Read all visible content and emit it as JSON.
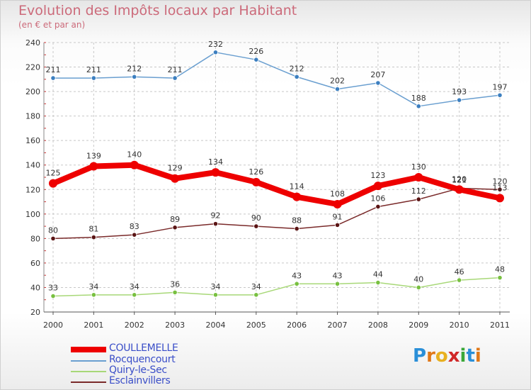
{
  "title": "Evolution des Impôts locaux par Habitant",
  "subtitle": "(en € et par an)",
  "brand": "Proxiti",
  "colors": {
    "title": "#cc6a7a",
    "legend_text": "#3a4ec8",
    "grid": "#c8c8c8",
    "axis_text": "#333333",
    "tick_red": "#cc3333"
  },
  "chart_data": {
    "type": "line",
    "title": "Evolution des Impôts locaux par Habitant",
    "subtitle": "(en € et par an)",
    "xlabel": "",
    "ylabel": "",
    "x": [
      "2000",
      "2001",
      "2002",
      "2003",
      "2004",
      "2005",
      "2006",
      "2007",
      "2008",
      "2009",
      "2010",
      "2011"
    ],
    "ylim": [
      20,
      240
    ],
    "yticks": [
      20,
      40,
      60,
      80,
      100,
      120,
      140,
      160,
      180,
      200,
      220,
      240
    ],
    "grid": true,
    "legend_position": "bottom-left",
    "series": [
      {
        "name": "COULLEMELLE",
        "color": "#ee0000",
        "marker_color": "#ee0000",
        "values": [
          125,
          139,
          140,
          129,
          134,
          126,
          114,
          108,
          123,
          130,
          120,
          113
        ],
        "labels": [
          "125",
          "139",
          "140",
          "129",
          "134",
          "126",
          "114",
          "108",
          "123",
          "130",
          "120",
          "113"
        ],
        "thick": true
      },
      {
        "name": "Rocquencourt",
        "color": "#6a9fd0",
        "marker_color": "#3c7fc0",
        "values": [
          211,
          211,
          212,
          211,
          232,
          226,
          212,
          202,
          207,
          188,
          193,
          197
        ],
        "labels": [
          "211",
          "211",
          "212",
          "211",
          "232",
          "226",
          "212",
          "202",
          "207",
          "188",
          "193",
          "197"
        ],
        "thick": false
      },
      {
        "name": "Quiry-le-Sec",
        "color": "#a8d878",
        "marker_color": "#78c040",
        "values": [
          33,
          34,
          34,
          36,
          34,
          34,
          43,
          43,
          44,
          40,
          46,
          48
        ],
        "labels": [
          "33",
          "34",
          "34",
          "36",
          "34",
          "34",
          "43",
          "43",
          "44",
          "40",
          "46",
          "48"
        ],
        "thick": false
      },
      {
        "name": "Esclainvillers",
        "color": "#7a2a2a",
        "marker_color": "#5a1414",
        "values": [
          80,
          81,
          83,
          89,
          92,
          90,
          88,
          91,
          106,
          112,
          121,
          120
        ],
        "labels": [
          "80",
          "81",
          "83",
          "89",
          "92",
          "90",
          "88",
          "91",
          "106",
          "112",
          "121",
          "120"
        ],
        "thick": false
      }
    ]
  }
}
